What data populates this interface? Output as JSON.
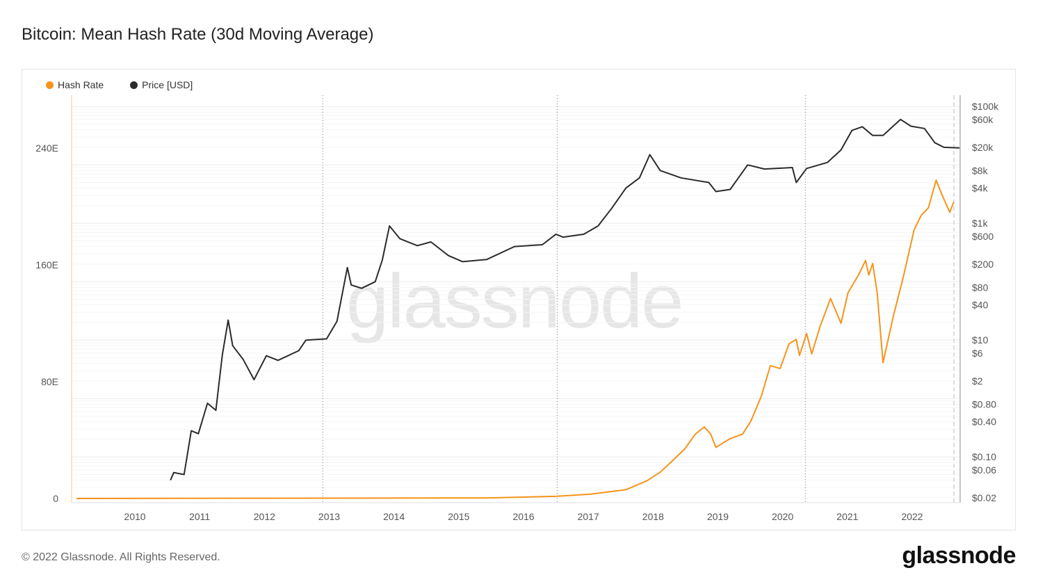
{
  "title": "Bitcoin: Mean Hash Rate (30d Moving Average)",
  "footer": "© 2022 Glassnode. All Rights Reserved.",
  "logo": "glassnode",
  "watermark": "glassnode",
  "colors": {
    "hash_rate": "#f7931a",
    "price": "#2b2b2b"
  },
  "chart_data": {
    "type": "line",
    "title": "Bitcoin: Mean Hash Rate (30d Moving Average)",
    "legend_position": "top-left",
    "grid": true,
    "x_ticks": [
      "2010",
      "2011",
      "2012",
      "2013",
      "2014",
      "2015",
      "2016",
      "2017",
      "2018",
      "2019",
      "2020",
      "2021",
      "2022"
    ],
    "xlim": [
      2009.02,
      2022.74
    ],
    "y_left": {
      "ticks": [
        "0",
        "80E",
        "160E",
        "240E"
      ],
      "tick_values": [
        0,
        80,
        160,
        240
      ],
      "range": [
        0,
        276
      ]
    },
    "y_right": {
      "scale": "log",
      "ticks": [
        "$100k",
        "$60k",
        "$20k",
        "$8k",
        "$4k",
        "$1k",
        "$600",
        "$200",
        "$80",
        "$40",
        "$10",
        "$6",
        "$2",
        "$0.80",
        "$0.40",
        "$0.10",
        "$0.06",
        "$0.02"
      ],
      "tick_values": [
        100000,
        60000,
        20000,
        8000,
        4000,
        1000,
        600,
        200,
        80,
        40,
        10,
        6,
        2,
        0.8,
        0.4,
        0.1,
        0.06,
        0.02
      ],
      "range": [
        0.02,
        800000
      ]
    },
    "halving_lines": [
      2012.9,
      2016.52,
      2020.35
    ],
    "series": [
      {
        "name": "Hash Rate",
        "axis": "left",
        "x": [
          2009.1,
          2015.43,
          2016.5,
          2017.04,
          2017.58,
          2017.9,
          2018.11,
          2018.28,
          2018.49,
          2018.65,
          2018.79,
          2018.89,
          2018.97,
          2019.19,
          2019.38,
          2019.51,
          2019.67,
          2019.81,
          2019.96,
          2020.1,
          2020.21,
          2020.26,
          2020.37,
          2020.45,
          2020.58,
          2020.74,
          2020.9,
          2021.01,
          2021.17,
          2021.28,
          2021.33,
          2021.39,
          2021.46,
          2021.55,
          2021.71,
          2021.87,
          2022.03,
          2022.14,
          2022.25,
          2022.37,
          2022.46,
          2022.58,
          2022.64
        ],
        "values": [
          0,
          0.4,
          1.5,
          3,
          6,
          12,
          18,
          25,
          34,
          44,
          49,
          44,
          35,
          41,
          44,
          53,
          70,
          91,
          89,
          106,
          109,
          98,
          113,
          99,
          118,
          137,
          120,
          141,
          153,
          163,
          153,
          161,
          141,
          93,
          125,
          153,
          184,
          194,
          199,
          218,
          208,
          196,
          203
        ]
      },
      {
        "name": "Price [USD]",
        "axis": "right",
        "x": [
          2010.55,
          2010.6,
          2010.76,
          2010.87,
          2010.98,
          2011.12,
          2011.25,
          2011.35,
          2011.44,
          2011.51,
          2011.67,
          2011.84,
          2012.03,
          2012.21,
          2012.53,
          2012.64,
          2012.96,
          2013.12,
          2013.28,
          2013.34,
          2013.5,
          2013.71,
          2013.82,
          2013.93,
          2014.09,
          2014.36,
          2014.57,
          2014.84,
          2015.06,
          2015.43,
          2015.86,
          2016.29,
          2016.5,
          2016.61,
          2016.93,
          2017.15,
          2017.36,
          2017.58,
          2017.79,
          2017.95,
          2018.11,
          2018.43,
          2018.86,
          2018.97,
          2019.19,
          2019.46,
          2019.72,
          2020.15,
          2020.21,
          2020.37,
          2020.69,
          2020.9,
          2021.07,
          2021.23,
          2021.39,
          2021.55,
          2021.82,
          2021.98,
          2022.19,
          2022.35,
          2022.49,
          2022.73
        ],
        "values": [
          0.04,
          0.054,
          0.05,
          0.28,
          0.25,
          0.83,
          0.63,
          5.6,
          22,
          8,
          4.7,
          2.1,
          5.4,
          4.5,
          6.6,
          10,
          10.5,
          21,
          175,
          88,
          77,
          100,
          235,
          900,
          545,
          415,
          480,
          280,
          220,
          240,
          400,
          430,
          650,
          580,
          650,
          900,
          1800,
          4000,
          6000,
          15000,
          8000,
          6000,
          5000,
          3500,
          3800,
          10000,
          8500,
          9000,
          5000,
          8700,
          11000,
          18000,
          39000,
          45000,
          32000,
          32000,
          60000,
          46000,
          42000,
          24000,
          20000,
          19500
        ]
      }
    ]
  }
}
